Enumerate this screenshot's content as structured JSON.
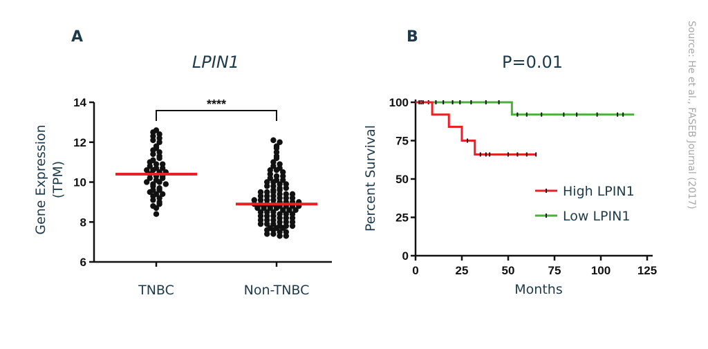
{
  "panels": {
    "a": {
      "letter": "A"
    },
    "b": {
      "letter": "B"
    }
  },
  "source_note": "Source: He et al., FASEB Journal (2017)",
  "colors": {
    "text": "#1e3a4a",
    "points": "#111111",
    "median": "#e8202a",
    "high": "#e8202a",
    "low": "#4cae3c",
    "source": "#a8a8a8"
  },
  "chart_data": [
    {
      "type": "scatter",
      "title": "LPIN1",
      "ylabel": "Gene Expression (TPM)",
      "ylabel_lines": [
        "Gene Expression",
        "(TPM)"
      ],
      "xlabel": "",
      "ylim": [
        6,
        14
      ],
      "yticks": [
        6,
        8,
        10,
        12,
        14
      ],
      "categories": [
        "TNBC",
        "Non-TNBC"
      ],
      "medians": [
        10.4,
        8.9
      ],
      "significance": "****",
      "series": [
        {
          "category": "TNBC",
          "values": [
            12.5,
            12.4,
            12.6,
            12.3,
            12.2,
            12.1,
            12.0,
            11.8,
            11.6,
            11.5,
            11.4,
            11.3,
            11.1,
            11.0,
            10.9,
            10.8,
            10.7,
            10.6,
            10.6,
            10.5,
            10.4,
            10.3,
            10.2,
            10.1,
            10.0,
            9.9,
            9.8,
            9.7,
            9.6,
            9.5,
            9.4,
            9.3,
            9.2,
            9.1,
            9.0,
            8.8,
            8.7,
            8.4,
            10.5,
            10.0,
            9.6,
            11.2,
            10.9,
            10.3,
            9.9,
            9.4,
            8.9,
            11.7,
            10.7,
            10.2
          ]
        },
        {
          "category": "Non-TNBC",
          "values": [
            12.1,
            12.0,
            11.8,
            11.7,
            11.5,
            11.3,
            11.2,
            11.0,
            10.9,
            10.8,
            10.7,
            10.6,
            10.6,
            10.5,
            10.4,
            10.3,
            10.3,
            10.2,
            10.1,
            10.1,
            10.0,
            10.0,
            9.9,
            9.9,
            9.8,
            9.8,
            9.7,
            9.7,
            9.6,
            9.6,
            9.5,
            9.5,
            9.5,
            9.4,
            9.4,
            9.4,
            9.3,
            9.3,
            9.3,
            9.2,
            9.2,
            9.2,
            9.1,
            9.1,
            9.1,
            9.1,
            9.0,
            9.0,
            9.0,
            9.0,
            8.9,
            8.9,
            8.9,
            8.9,
            8.8,
            8.8,
            8.8,
            8.8,
            8.7,
            8.7,
            8.7,
            8.7,
            8.6,
            8.6,
            8.6,
            8.5,
            8.5,
            8.5,
            8.4,
            8.4,
            8.4,
            8.3,
            8.3,
            8.3,
            8.2,
            8.2,
            8.2,
            8.1,
            8.1,
            8.1,
            8.0,
            8.0,
            8.0,
            7.9,
            7.9,
            7.9,
            7.8,
            7.8,
            7.8,
            7.7,
            7.7,
            7.7,
            7.6,
            7.6,
            7.5,
            7.5,
            7.4,
            7.4,
            7.3,
            7.3
          ]
        }
      ]
    },
    {
      "type": "line",
      "title": "P=0.01",
      "xlabel": "Months",
      "ylabel": "Percent Survival",
      "xlim": [
        0,
        125
      ],
      "ylim": [
        0,
        100
      ],
      "xticks": [
        0,
        25,
        50,
        75,
        100,
        125
      ],
      "yticks": [
        0,
        25,
        50,
        75,
        100
      ],
      "step": true,
      "legend_position": "bottom-right",
      "series": [
        {
          "name": "High LPIN1",
          "color": "#e8202a",
          "x": [
            0,
            9,
            9,
            18,
            18,
            25,
            25,
            32,
            32,
            65
          ],
          "y": [
            100,
            100,
            92,
            92,
            84,
            84,
            75,
            75,
            66,
            66
          ],
          "censored_x": [
            2,
            4,
            28,
            35,
            38,
            40,
            50,
            55,
            60,
            65
          ],
          "censored_y": [
            100,
            100,
            75,
            66,
            66,
            66,
            66,
            66,
            66,
            66
          ]
        },
        {
          "name": "Low LPIN1",
          "color": "#4cae3c",
          "x": [
            0,
            52,
            52,
            118
          ],
          "y": [
            100,
            100,
            92,
            92
          ],
          "censored_x": [
            3,
            7,
            11,
            15,
            20,
            24,
            30,
            38,
            45,
            55,
            60,
            68,
            80,
            87,
            98,
            109,
            112
          ],
          "censored_y": [
            100,
            100,
            100,
            100,
            100,
            100,
            100,
            100,
            100,
            92,
            92,
            92,
            92,
            92,
            92,
            92,
            92
          ]
        }
      ]
    }
  ]
}
